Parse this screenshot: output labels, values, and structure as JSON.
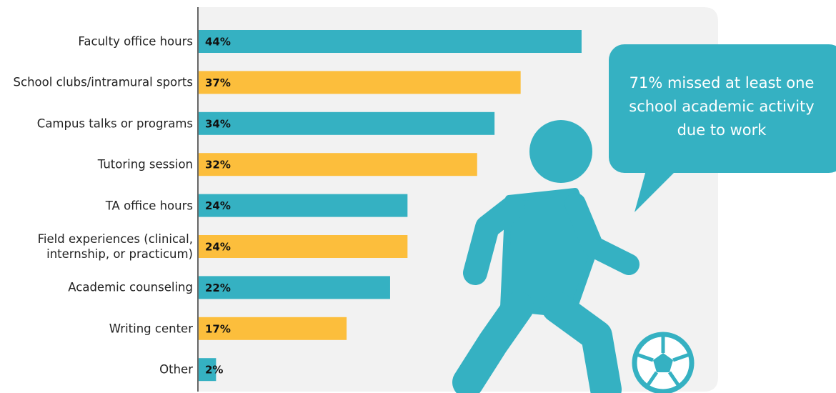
{
  "chart_data": {
    "type": "hbar",
    "categories": [
      "Faculty office hours",
      "School clubs/intramural sports",
      "Campus talks or programs",
      "Tutoring session",
      "TA office hours",
      "Field experiences (clinical,\ninternship, or practicum)",
      "Academic counseling",
      "Writing center",
      "Other"
    ],
    "values": [
      44,
      37,
      34,
      32,
      24,
      24,
      22,
      17,
      2
    ],
    "value_labels": [
      "44%",
      "37%",
      "34%",
      "32%",
      "24%",
      "24%",
      "22%",
      "17%",
      "2%"
    ],
    "colors": [
      "#35b1c2",
      "#fcbe3c",
      "#35b1c2",
      "#fcbe3c",
      "#35b1c2",
      "#fcbe3c",
      "#35b1c2",
      "#fcbe3c",
      "#35b1c2"
    ],
    "xlim": [
      0,
      50
    ],
    "annotation": "71% missed at least one school academic activity due to work"
  }
}
